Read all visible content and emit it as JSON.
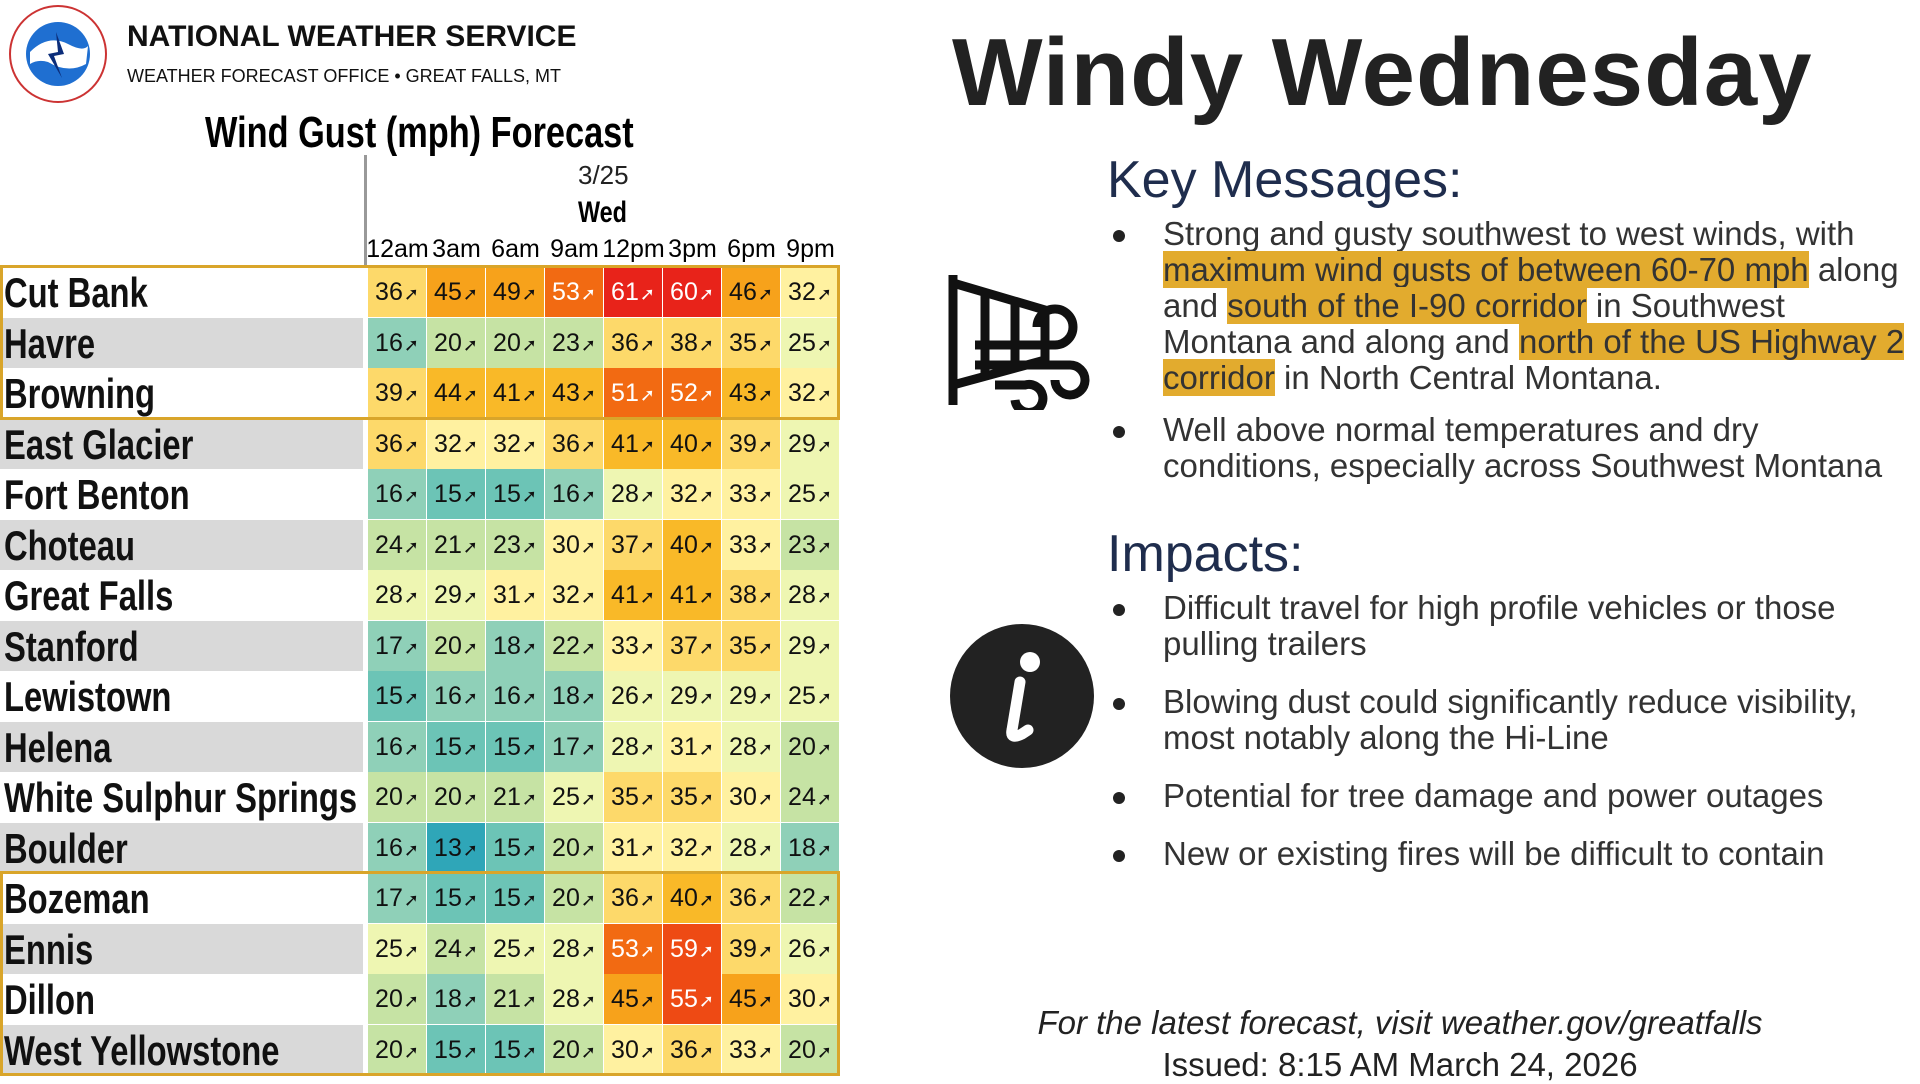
{
  "header": {
    "org": "NATIONAL WEATHER SERVICE",
    "office": "WEATHER FORECAST OFFICE • GREAT FALLS, MT"
  },
  "table": {
    "title": "Wind Gust (mph) Forecast",
    "date": "3/25",
    "day": "Wed",
    "hours": [
      "12am",
      "3am",
      "6am",
      "9am",
      "12pm",
      "3pm",
      "6pm",
      "9pm"
    ],
    "rows": [
      {
        "name": "Cut Bank",
        "values": [
          36,
          45,
          49,
          53,
          61,
          60,
          46,
          32
        ]
      },
      {
        "name": "Havre",
        "values": [
          16,
          20,
          20,
          23,
          36,
          38,
          35,
          25
        ]
      },
      {
        "name": "Browning",
        "values": [
          39,
          44,
          41,
          43,
          51,
          52,
          43,
          32
        ]
      },
      {
        "name": "East Glacier",
        "values": [
          36,
          32,
          32,
          36,
          41,
          40,
          39,
          29
        ]
      },
      {
        "name": "Fort Benton",
        "values": [
          16,
          15,
          15,
          16,
          28,
          32,
          33,
          25
        ]
      },
      {
        "name": "Choteau",
        "values": [
          24,
          21,
          23,
          30,
          37,
          40,
          33,
          23
        ]
      },
      {
        "name": "Great Falls",
        "values": [
          28,
          29,
          31,
          32,
          41,
          41,
          38,
          28
        ]
      },
      {
        "name": "Stanford",
        "values": [
          17,
          20,
          18,
          22,
          33,
          37,
          35,
          29
        ]
      },
      {
        "name": "Lewistown",
        "values": [
          15,
          16,
          16,
          18,
          26,
          29,
          29,
          25
        ]
      },
      {
        "name": "Helena",
        "values": [
          16,
          15,
          15,
          17,
          28,
          31,
          28,
          20
        ]
      },
      {
        "name": "White Sulphur Springs",
        "values": [
          20,
          20,
          21,
          25,
          35,
          35,
          30,
          24
        ]
      },
      {
        "name": "Boulder",
        "values": [
          16,
          13,
          15,
          20,
          31,
          32,
          28,
          18
        ]
      },
      {
        "name": "Bozeman",
        "values": [
          17,
          15,
          15,
          20,
          36,
          40,
          36,
          22
        ]
      },
      {
        "name": "Ennis",
        "values": [
          25,
          24,
          25,
          28,
          53,
          59,
          39,
          26
        ]
      },
      {
        "name": "Dillon",
        "values": [
          20,
          18,
          21,
          28,
          45,
          55,
          45,
          30
        ]
      },
      {
        "name": "West Yellowstone",
        "values": [
          20,
          15,
          15,
          20,
          30,
          36,
          33,
          20
        ]
      }
    ]
  },
  "title": "Windy Wednesday",
  "key_messages": {
    "heading": "Key Messages:",
    "bullets": [
      [
        {
          "text": "Strong and gusty southwest to west winds, with ",
          "highlight": false
        },
        {
          "text": "maximum wind gusts of between 60-70 mph",
          "highlight": true
        },
        {
          "text": " along and ",
          "highlight": false
        },
        {
          "text": "south of the I-90 corridor",
          "highlight": true
        },
        {
          "text": " in Southwest Montana and along and ",
          "highlight": false
        },
        {
          "text": "north of the US Highway 2 corridor",
          "highlight": true
        },
        {
          "text": " in North Central Montana.",
          "highlight": false
        }
      ],
      [
        {
          "text": "Well above normal temperatures and dry conditions, especially across Southwest Montana",
          "highlight": false
        }
      ]
    ]
  },
  "impacts": {
    "heading": "Impacts:",
    "bullets": [
      "Difficult travel for high profile vehicles or those pulling trailers",
      "Blowing dust could significantly reduce visibility, most notably along the Hi-Line",
      "Potential for tree damage and power outages",
      "New or existing fires will be difficult to contain"
    ]
  },
  "footer": {
    "link_text": "For the latest forecast, visit weather.gov/greatfalls",
    "issued": "Issued: 8:15 AM March 24, 2026"
  }
}
